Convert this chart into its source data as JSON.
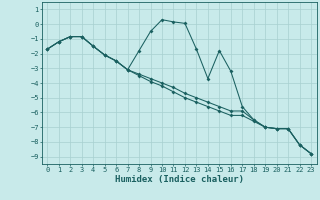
{
  "xlabel": "Humidex (Indice chaleur)",
  "background_color": "#c8eaea",
  "grid_color": "#a8d0d0",
  "line_color": "#1a6060",
  "x": [
    0,
    1,
    2,
    3,
    4,
    5,
    6,
    7,
    8,
    9,
    10,
    11,
    12,
    13,
    14,
    15,
    16,
    17,
    18,
    19,
    20,
    21,
    22,
    23
  ],
  "line1_y": [
    -1.7,
    -1.2,
    -0.85,
    -0.85,
    -1.5,
    -2.1,
    -2.5,
    -3.1,
    -1.8,
    -0.5,
    0.3,
    0.15,
    0.05,
    -1.7,
    -3.7,
    -1.8,
    -3.2,
    -5.6,
    -6.5,
    -7.0,
    -7.1,
    -7.1,
    -8.2,
    -8.8
  ],
  "line2_y": [
    -1.7,
    -1.2,
    -0.85,
    -0.85,
    -1.5,
    -2.1,
    -2.5,
    -3.1,
    -3.4,
    -3.7,
    -4.0,
    -4.3,
    -4.7,
    -5.0,
    -5.3,
    -5.6,
    -5.9,
    -5.9,
    -6.5,
    -7.0,
    -7.1,
    -7.1,
    -8.2,
    -8.8
  ],
  "line3_y": [
    -1.7,
    -1.2,
    -0.85,
    -0.85,
    -1.5,
    -2.1,
    -2.5,
    -3.1,
    -3.5,
    -3.9,
    -4.2,
    -4.6,
    -5.0,
    -5.3,
    -5.6,
    -5.9,
    -6.2,
    -6.2,
    -6.6,
    -7.0,
    -7.1,
    -7.1,
    -8.2,
    -8.8
  ],
  "ylim": [
    -9.5,
    1.5
  ],
  "xlim": [
    -0.5,
    23.5
  ],
  "yticks": [
    1,
    0,
    -1,
    -2,
    -3,
    -4,
    -5,
    -6,
    -7,
    -8,
    -9
  ],
  "xticks": [
    0,
    1,
    2,
    3,
    4,
    5,
    6,
    7,
    8,
    9,
    10,
    11,
    12,
    13,
    14,
    15,
    16,
    17,
    18,
    19,
    20,
    21,
    22,
    23
  ]
}
